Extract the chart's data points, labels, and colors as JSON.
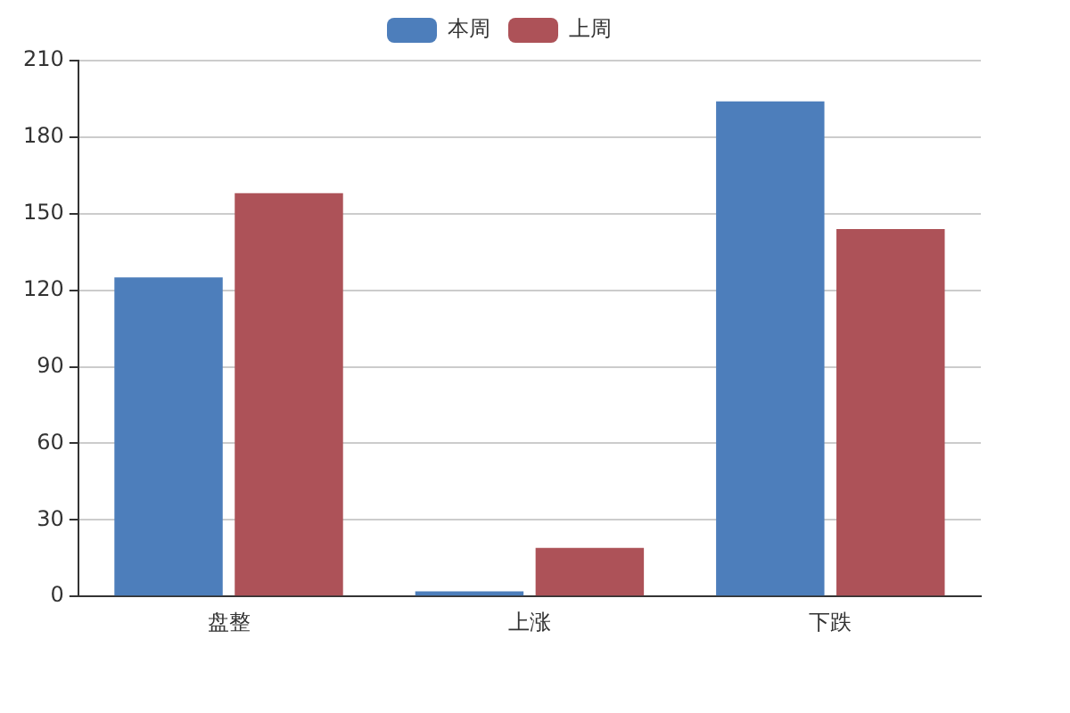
{
  "chart_data": {
    "type": "bar",
    "categories": [
      "盘整",
      "上涨",
      "下跌"
    ],
    "series": [
      {
        "name": "本周",
        "color": "#4d7ebb",
        "values": [
          125,
          2,
          194
        ]
      },
      {
        "name": "上周",
        "color": "#ad5258",
        "values": [
          158,
          19,
          144
        ]
      }
    ],
    "ylim": [
      0,
      210
    ],
    "yticks": [
      0,
      30,
      60,
      90,
      120,
      150,
      180,
      210
    ],
    "grid": "y",
    "legend": "top"
  }
}
